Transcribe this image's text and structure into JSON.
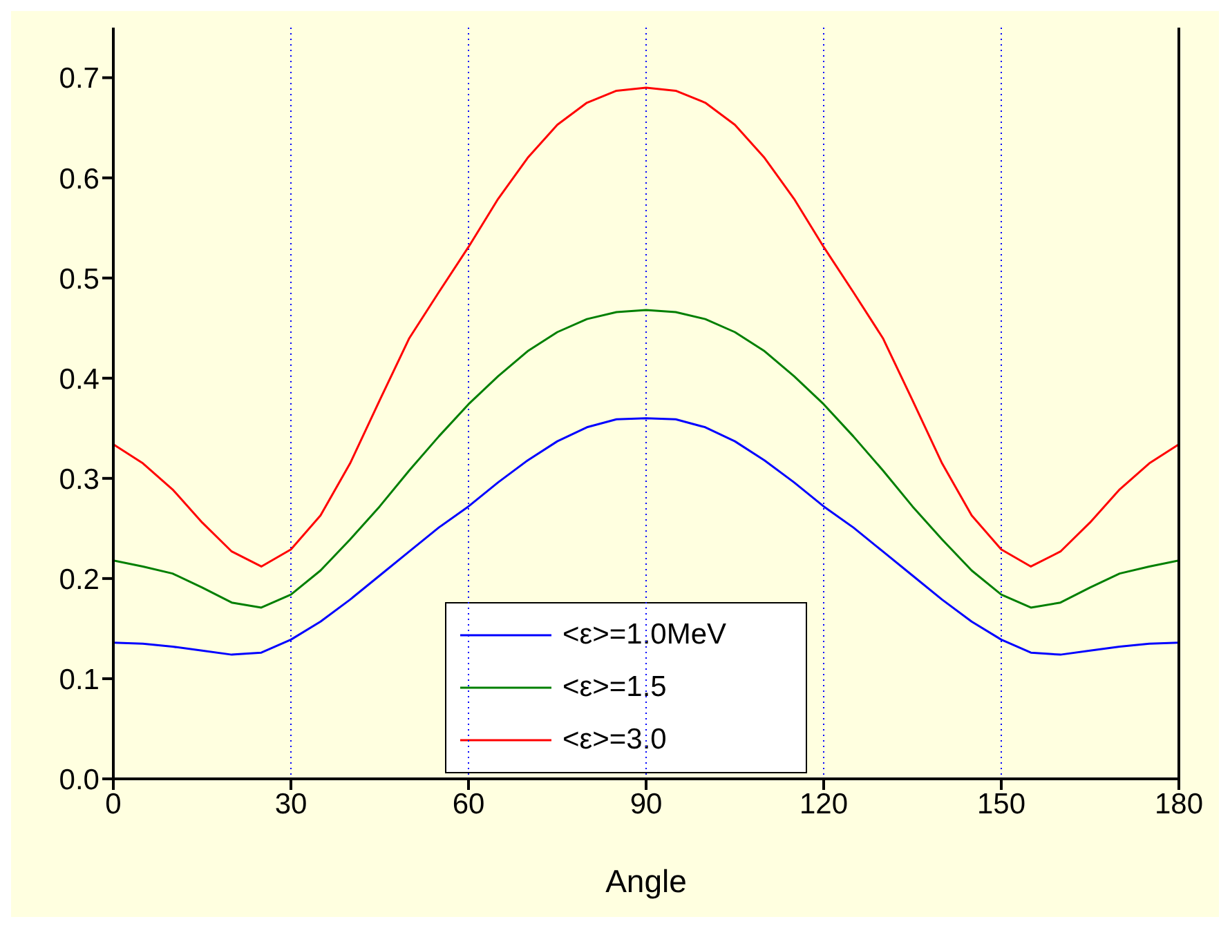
{
  "chart_data": {
    "type": "line",
    "xlabel": "Angle",
    "x": [
      0,
      5,
      10,
      15,
      20,
      25,
      30,
      35,
      40,
      45,
      50,
      55,
      60,
      65,
      70,
      75,
      80,
      85,
      90,
      95,
      100,
      105,
      110,
      115,
      120,
      125,
      130,
      135,
      140,
      145,
      150,
      155,
      160,
      165,
      170,
      175,
      180
    ],
    "series": [
      {
        "name": "<ε>=1.0MeV",
        "color": "#0000ff",
        "values": [
          0.136,
          0.135,
          0.132,
          0.128,
          0.124,
          0.126,
          0.139,
          0.157,
          0.179,
          0.203,
          0.227,
          0.251,
          0.272,
          0.296,
          0.318,
          0.337,
          0.351,
          0.359,
          0.36,
          0.359,
          0.351,
          0.337,
          0.318,
          0.296,
          0.272,
          0.251,
          0.227,
          0.203,
          0.179,
          0.157,
          0.139,
          0.126,
          0.124,
          0.128,
          0.132,
          0.135,
          0.136
        ]
      },
      {
        "name": "<ε>=1.5",
        "color": "#007f00",
        "values": [
          0.218,
          0.212,
          0.205,
          0.191,
          0.176,
          0.171,
          0.184,
          0.208,
          0.239,
          0.272,
          0.308,
          0.342,
          0.374,
          0.402,
          0.427,
          0.446,
          0.459,
          0.466,
          0.468,
          0.466,
          0.459,
          0.446,
          0.427,
          0.402,
          0.374,
          0.342,
          0.308,
          0.272,
          0.239,
          0.208,
          0.184,
          0.171,
          0.176,
          0.191,
          0.205,
          0.212,
          0.218
        ]
      },
      {
        "name": "<ε>=3.0",
        "color": "#ff0000",
        "values": [
          0.334,
          0.315,
          0.289,
          0.256,
          0.227,
          0.212,
          0.229,
          0.263,
          0.315,
          0.378,
          0.44,
          0.486,
          0.531,
          0.579,
          0.62,
          0.653,
          0.675,
          0.687,
          0.69,
          0.687,
          0.675,
          0.653,
          0.62,
          0.579,
          0.531,
          0.486,
          0.44,
          0.378,
          0.315,
          0.263,
          0.229,
          0.212,
          0.227,
          0.256,
          0.289,
          0.315,
          0.334
        ]
      }
    ],
    "xlim": [
      0,
      180
    ],
    "xticks": [
      0,
      30,
      60,
      90,
      120,
      150,
      180
    ],
    "ylim": [
      0,
      0.75
    ],
    "yticks": [
      {
        "value": 0,
        "label": "0.0"
      },
      0.1,
      0.2,
      0.3,
      0.4,
      0.5,
      0.6,
      0.7
    ],
    "grid": "x",
    "legend": "bottom",
    "marker": "none",
    "line_style": "solid"
  }
}
